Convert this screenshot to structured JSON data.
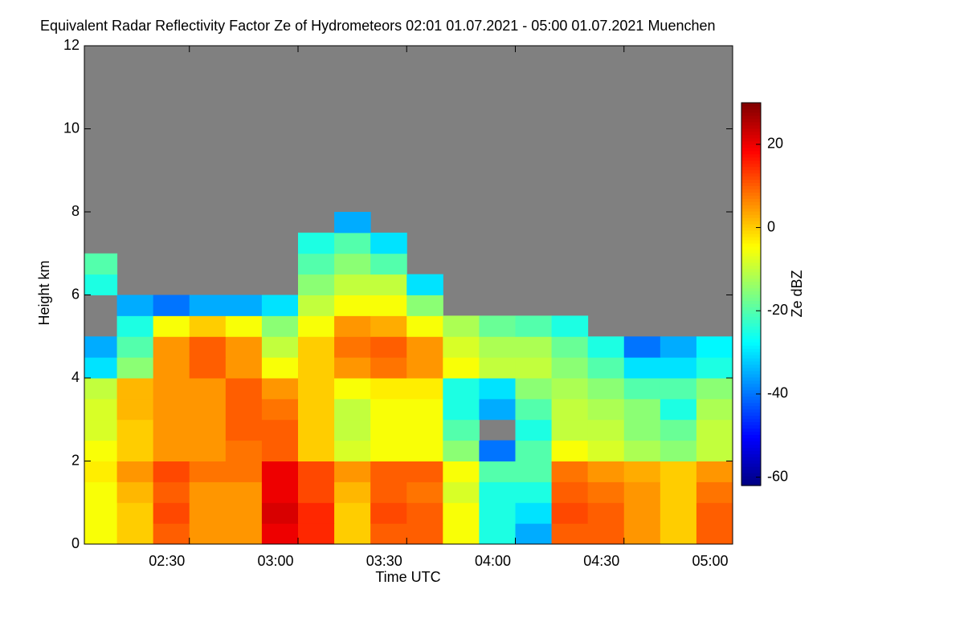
{
  "chart_data": {
    "type": "heatmap",
    "title": "Equivalent Radar Reflectivity Factor Ze of Hydrometeors   02:01 01.07.2021 - 05:00 01.07.2021 Muenchen",
    "xlabel": "Time UTC",
    "ylabel": "Height km",
    "colorbar_label": "Ze dBZ",
    "colormap": "jet",
    "missing_color": "#808080",
    "xlim": [
      2.0167,
      5
    ],
    "ylim": [
      0,
      12
    ],
    "xticks": [
      {
        "value": 2.5,
        "label": "02:30"
      },
      {
        "value": 3,
        "label": "03:00"
      },
      {
        "value": 3.5,
        "label": "03:30"
      },
      {
        "value": 4,
        "label": "04:00"
      },
      {
        "value": 4.5,
        "label": "04:30"
      },
      {
        "value": 5,
        "label": "05:00"
      }
    ],
    "yticks": [
      0,
      2,
      4,
      6,
      8,
      10,
      12
    ],
    "clim": [
      -62,
      30
    ],
    "cticks": [
      -60,
      -40,
      -20,
      0,
      20
    ],
    "x_bins": [
      2.0167,
      2.1667,
      2.3333,
      2.5,
      2.6667,
      2.8333,
      3,
      3.1667,
      3.3333,
      3.5,
      3.6667,
      3.8333,
      4,
      4.1667,
      4.3333,
      4.5,
      4.6667,
      4.8333,
      5
    ],
    "y_bins": [
      0,
      0.5,
      1,
      1.5,
      2,
      2.5,
      3,
      3.5,
      4,
      4.5,
      5,
      5.5,
      6,
      6.5,
      7,
      7.5,
      8
    ],
    "values": [
      [
        -5,
        0,
        10,
        5,
        5,
        20,
        15,
        0,
        10,
        10,
        -5,
        -25,
        -35,
        10,
        10,
        5,
        0,
        10
      ],
      [
        -5,
        0,
        12,
        5,
        5,
        22,
        15,
        0,
        12,
        10,
        -5,
        -25,
        -30,
        12,
        10,
        5,
        0,
        10
      ],
      [
        -5,
        2,
        10,
        5,
        5,
        20,
        12,
        2,
        10,
        8,
        -8,
        -25,
        -25,
        10,
        8,
        5,
        0,
        8
      ],
      [
        -3,
        5,
        12,
        8,
        8,
        20,
        12,
        5,
        10,
        10,
        -5,
        -20,
        -20,
        8,
        5,
        3,
        0,
        5
      ],
      [
        -5,
        0,
        5,
        5,
        8,
        10,
        0,
        -8,
        -5,
        -5,
        -15,
        -40,
        -20,
        -5,
        -8,
        -12,
        -15,
        -10
      ],
      [
        -8,
        0,
        5,
        5,
        10,
        10,
        0,
        -10,
        -5,
        -5,
        -20,
        null,
        -25,
        -10,
        -10,
        -15,
        -18,
        -10
      ],
      [
        -8,
        2,
        5,
        5,
        10,
        8,
        0,
        -10,
        -5,
        -5,
        -25,
        -35,
        -20,
        -10,
        -12,
        -15,
        -25,
        -12
      ],
      [
        -10,
        2,
        5,
        5,
        10,
        5,
        0,
        -5,
        -3,
        -3,
        -25,
        -30,
        -15,
        -12,
        -15,
        -20,
        -20,
        -15
      ],
      [
        -30,
        -15,
        5,
        10,
        5,
        -5,
        0,
        5,
        8,
        5,
        -5,
        -10,
        -10,
        -15,
        -20,
        -30,
        -30,
        -25
      ],
      [
        -35,
        -20,
        5,
        10,
        5,
        -10,
        0,
        8,
        10,
        5,
        -8,
        -12,
        -12,
        -18,
        -25,
        -40,
        -35,
        -28
      ],
      [
        null,
        -25,
        -5,
        0,
        -5,
        -15,
        -5,
        5,
        3,
        -5,
        -12,
        -18,
        -20,
        -25,
        null,
        null,
        null,
        null
      ],
      [
        null,
        -35,
        -40,
        -35,
        -35,
        -30,
        -10,
        -5,
        -5,
        -15,
        null,
        null,
        null,
        null,
        null,
        null,
        null,
        null
      ],
      [
        -25,
        null,
        null,
        null,
        null,
        null,
        -15,
        -10,
        -10,
        -30,
        null,
        null,
        null,
        null,
        null,
        null,
        null,
        null
      ],
      [
        -20,
        null,
        null,
        null,
        null,
        null,
        -20,
        -15,
        -20,
        null,
        null,
        null,
        null,
        null,
        null,
        null,
        null,
        null
      ],
      [
        null,
        null,
        null,
        null,
        null,
        null,
        -25,
        -20,
        -30,
        null,
        null,
        null,
        null,
        null,
        null,
        null,
        null,
        null
      ],
      [
        null,
        null,
        null,
        null,
        null,
        null,
        null,
        -35,
        null,
        null,
        null,
        null,
        null,
        null,
        null,
        null,
        null,
        null
      ]
    ]
  }
}
